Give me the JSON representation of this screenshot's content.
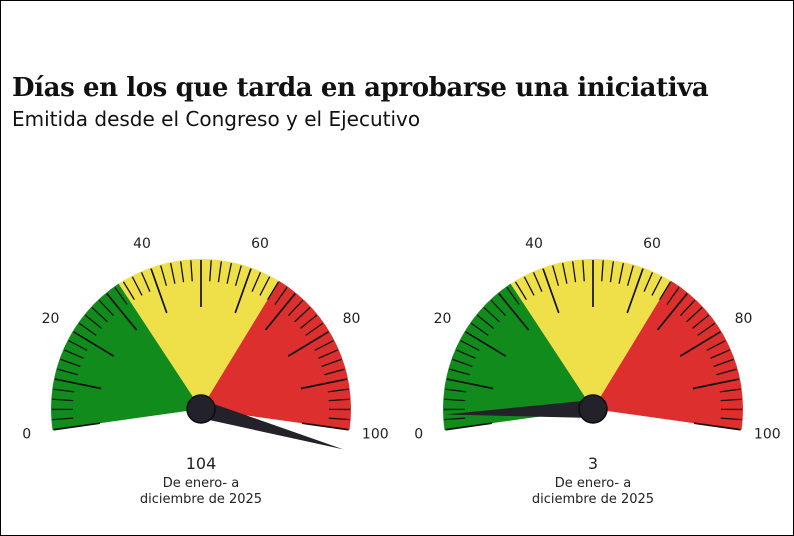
{
  "header": {
    "title": "Días en los que tarda en aprobarse una iniciativa",
    "subtitle": "Emitida desde el Congreso y el Ejecutivo"
  },
  "chart_data": [
    {
      "type": "gauge",
      "value": 104,
      "value_label": "104",
      "caption_line1": "De enero- a",
      "caption_line2": "diciembre de 2025",
      "range": [
        0,
        100
      ],
      "tick_labels": [
        "0",
        "20",
        "40",
        "60",
        "80",
        "100"
      ],
      "bands": [
        {
          "from": 0,
          "to": 33,
          "color": "#118c1c"
        },
        {
          "from": 33,
          "to": 66,
          "color": "#efe04a"
        },
        {
          "from": 66,
          "to": 100,
          "color": "#dd2f2d"
        }
      ]
    },
    {
      "type": "gauge",
      "value": 3,
      "value_label": "3",
      "caption_line1": "De enero- a",
      "caption_line2": "diciembre de 2025",
      "range": [
        0,
        100
      ],
      "tick_labels": [
        "0",
        "20",
        "40",
        "60",
        "80",
        "100"
      ],
      "bands": [
        {
          "from": 0,
          "to": 33,
          "color": "#118c1c"
        },
        {
          "from": 33,
          "to": 66,
          "color": "#efe04a"
        },
        {
          "from": 66,
          "to": 100,
          "color": "#dd2f2d"
        }
      ]
    }
  ]
}
